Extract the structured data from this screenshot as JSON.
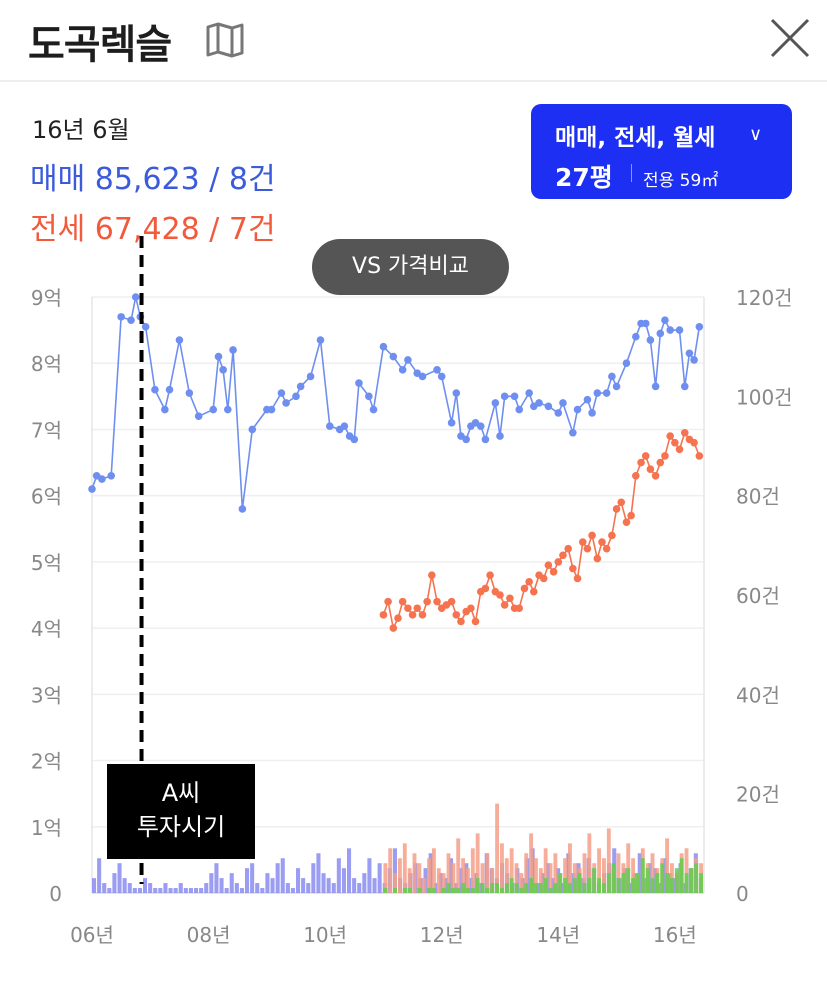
{
  "header": {
    "title": "도곡렉슬",
    "map_icon": "map-icon",
    "close_icon": "close-icon"
  },
  "summary": {
    "period": "16년 6월",
    "sale_text": "매매 85,623 / 8건",
    "jeonse_text": "전세 67,428 / 7건"
  },
  "selector": {
    "type_label": "매매, 전세, 월세",
    "chevron": "∨",
    "size_label": "27평",
    "area_label": "전용 59㎡"
  },
  "vs_button": "VS 가격비교",
  "annotation": {
    "line1": "A씨",
    "line2": "투자시기"
  },
  "colors": {
    "sale": "#3b5bdb",
    "sale_line": "#6f8ff0",
    "jeonse": "#f5734f",
    "monthly": "#4dbb3a",
    "selector_bg": "#1c2ff2"
  },
  "chart_data": {
    "type": "line",
    "x_ticks": [
      "06년",
      "08년",
      "10년",
      "12년",
      "14년",
      "16년"
    ],
    "x_tick_years": [
      2006,
      2008,
      2010,
      2012,
      2014,
      2016
    ],
    "xlim": [
      2006.0,
      2016.5
    ],
    "y_left_ticks": [
      "0",
      "1억",
      "2억",
      "3억",
      "4억",
      "5억",
      "6억",
      "7억",
      "8억",
      "9억"
    ],
    "y_left_lim": [
      0,
      9
    ],
    "y_right_ticks": [
      "0",
      "20건",
      "40건",
      "60건",
      "80건",
      "100건",
      "120건"
    ],
    "y_right_lim": [
      0,
      120
    ],
    "marker_year": 2006.85,
    "series": [
      {
        "name": "매매",
        "unit": "억",
        "x": [
          2006.0,
          2006.08,
          2006.17,
          2006.33,
          2006.5,
          2006.67,
          2006.75,
          2006.83,
          2006.92,
          2007.08,
          2007.25,
          2007.33,
          2007.5,
          2007.67,
          2007.83,
          2008.08,
          2008.17,
          2008.25,
          2008.33,
          2008.42,
          2008.58,
          2008.75,
          2009.0,
          2009.08,
          2009.25,
          2009.33,
          2009.5,
          2009.58,
          2009.75,
          2009.92,
          2010.08,
          2010.25,
          2010.33,
          2010.42,
          2010.5,
          2010.58,
          2010.75,
          2010.83,
          2011.0,
          2011.17,
          2011.33,
          2011.42,
          2011.58,
          2011.67,
          2011.92,
          2012.0,
          2012.17,
          2012.25,
          2012.33,
          2012.42,
          2012.5,
          2012.58,
          2012.67,
          2012.75,
          2012.92,
          2013.0,
          2013.08,
          2013.25,
          2013.33,
          2013.5,
          2013.58,
          2013.67,
          2013.83,
          2014.0,
          2014.08,
          2014.25,
          2014.33,
          2014.5,
          2014.58,
          2014.67,
          2014.83,
          2014.92,
          2015.0,
          2015.17,
          2015.33,
          2015.42,
          2015.5,
          2015.58,
          2015.67,
          2015.75,
          2015.83,
          2015.92,
          2016.08,
          2016.17,
          2016.25,
          2016.33,
          2016.42
        ],
        "values": [
          6.1,
          6.3,
          6.25,
          6.3,
          8.7,
          8.65,
          9.0,
          8.7,
          8.55,
          7.6,
          7.3,
          7.6,
          8.35,
          7.55,
          7.2,
          7.3,
          8.1,
          7.9,
          7.3,
          8.2,
          5.8,
          7.0,
          7.3,
          7.3,
          7.55,
          7.4,
          7.5,
          7.65,
          7.8,
          8.35,
          7.05,
          7.0,
          7.05,
          6.9,
          6.85,
          7.7,
          7.5,
          7.3,
          8.25,
          8.1,
          7.9,
          8.05,
          7.85,
          7.8,
          7.9,
          7.8,
          7.1,
          7.55,
          6.9,
          6.85,
          7.05,
          7.1,
          7.05,
          6.85,
          7.4,
          6.9,
          7.5,
          7.5,
          7.3,
          7.55,
          7.35,
          7.4,
          7.35,
          7.25,
          7.4,
          6.95,
          7.3,
          7.45,
          7.25,
          7.55,
          7.55,
          7.8,
          7.65,
          8.0,
          8.4,
          8.6,
          8.6,
          8.35,
          7.65,
          8.45,
          8.65,
          8.5,
          8.5,
          7.65,
          8.15,
          8.05,
          8.55
        ]
      },
      {
        "name": "전세",
        "unit": "억",
        "x": [
          2011.0,
          2011.08,
          2011.17,
          2011.25,
          2011.33,
          2011.42,
          2011.5,
          2011.58,
          2011.67,
          2011.75,
          2011.83,
          2011.92,
          2012.0,
          2012.08,
          2012.17,
          2012.25,
          2012.33,
          2012.42,
          2012.5,
          2012.58,
          2012.67,
          2012.75,
          2012.83,
          2012.92,
          2013.0,
          2013.08,
          2013.17,
          2013.25,
          2013.33,
          2013.42,
          2013.5,
          2013.58,
          2013.67,
          2013.75,
          2013.83,
          2013.92,
          2014.0,
          2014.08,
          2014.17,
          2014.25,
          2014.33,
          2014.42,
          2014.5,
          2014.58,
          2014.67,
          2014.75,
          2014.83,
          2014.92,
          2015.0,
          2015.08,
          2015.17,
          2015.25,
          2015.33,
          2015.42,
          2015.5,
          2015.58,
          2015.67,
          2015.75,
          2015.83,
          2015.92,
          2016.0,
          2016.08,
          2016.17,
          2016.25,
          2016.33,
          2016.42
        ],
        "values": [
          4.2,
          4.4,
          4.0,
          4.15,
          4.4,
          4.3,
          4.2,
          4.3,
          4.2,
          4.4,
          4.8,
          4.4,
          4.3,
          4.35,
          4.4,
          4.2,
          4.1,
          4.25,
          4.3,
          4.1,
          4.55,
          4.6,
          4.8,
          4.55,
          4.5,
          4.35,
          4.45,
          4.3,
          4.3,
          4.6,
          4.7,
          4.55,
          4.8,
          4.75,
          4.95,
          4.85,
          5.0,
          5.1,
          5.2,
          4.9,
          4.75,
          5.3,
          5.2,
          5.4,
          5.05,
          5.3,
          5.2,
          5.4,
          5.8,
          5.9,
          5.6,
          5.7,
          6.3,
          6.5,
          6.6,
          6.4,
          6.3,
          6.5,
          6.6,
          6.9,
          6.8,
          6.7,
          6.95,
          6.85,
          6.8,
          6.6
        ]
      }
    ],
    "volume": [
      {
        "name": "매매 거래량",
        "color": "#8a8cf0",
        "x_start": 2006.0,
        "x_end": 2016.5,
        "values": [
          3,
          7,
          2,
          1,
          4,
          6,
          3,
          2,
          1,
          1,
          3,
          2,
          1,
          1,
          2,
          1,
          1,
          2,
          1,
          1,
          1,
          1,
          2,
          4,
          6,
          3,
          1,
          4,
          2,
          1,
          5,
          6,
          2,
          1,
          4,
          3,
          6,
          7,
          2,
          1,
          5,
          3,
          2,
          6,
          8,
          4,
          3,
          2,
          7,
          5,
          9,
          3,
          2,
          4,
          7,
          3,
          6,
          2,
          5,
          9,
          3,
          2,
          4,
          6,
          3,
          5,
          8,
          2,
          4,
          3,
          7,
          2,
          5,
          6,
          3,
          4,
          2,
          8,
          5,
          3,
          6,
          4,
          2,
          5,
          3,
          7,
          9,
          2,
          4,
          6,
          3,
          5,
          2,
          8,
          4,
          6,
          3,
          7,
          5,
          2,
          4,
          6,
          9,
          3,
          5,
          2,
          4,
          8,
          3,
          6,
          5,
          2,
          7,
          4,
          3,
          6,
          2,
          5,
          8,
          3
        ]
      },
      {
        "name": "전세 거래량",
        "color": "#f4a08a",
        "x_start": 2011.0,
        "x_end": 2016.5,
        "values": [
          6,
          9,
          4,
          7,
          10,
          5,
          8,
          6,
          3,
          7,
          9,
          5,
          4,
          8,
          6,
          11,
          7,
          5,
          9,
          12,
          6,
          8,
          5,
          18,
          10,
          7,
          9,
          6,
          4,
          8,
          12,
          7,
          5,
          9,
          6,
          8,
          4,
          7,
          10,
          6,
          5,
          8,
          12,
          6,
          9,
          7,
          13,
          5,
          8,
          6,
          10,
          7,
          4,
          9,
          6,
          8,
          5,
          7,
          11,
          6,
          4,
          8,
          9,
          5,
          7,
          6
        ]
      },
      {
        "name": "월세 거래량",
        "color": "#5fcf4a",
        "x_start": 2011.0,
        "x_end": 2016.5,
        "values": [
          1,
          0,
          1,
          0,
          1,
          1,
          0,
          1,
          0,
          1,
          1,
          0,
          1,
          2,
          1,
          1,
          2,
          1,
          1,
          3,
          2,
          1,
          2,
          2,
          1,
          2,
          3,
          2,
          1,
          2,
          3,
          2,
          2,
          3,
          1,
          2,
          4,
          3,
          2,
          3,
          4,
          2,
          3,
          5,
          3,
          2,
          4,
          6,
          3,
          4,
          5,
          3,
          4,
          7,
          5,
          3,
          4,
          6,
          4,
          3,
          5,
          7,
          4,
          5,
          6,
          4
        ]
      }
    ]
  }
}
